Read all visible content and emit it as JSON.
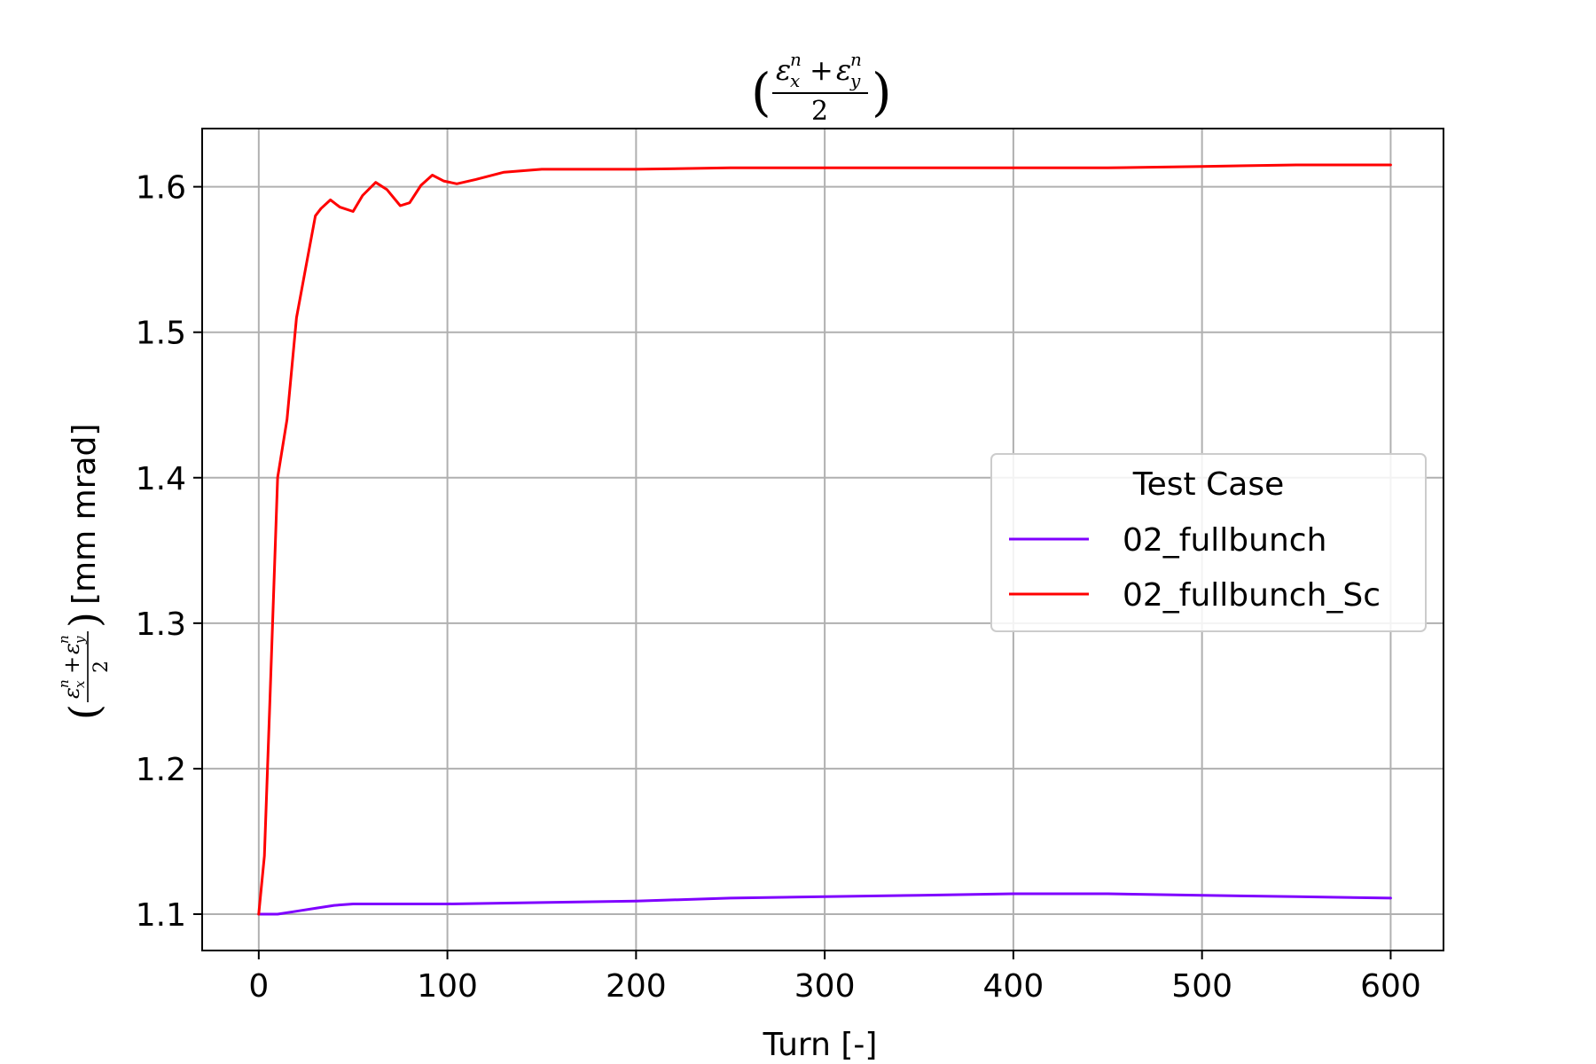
{
  "chart_data": {
    "type": "line",
    "title": "(εxn + εyn) / 2",
    "title_parts": {
      "sym": "ε",
      "sub_x": "x",
      "sub_y": "y",
      "sup": "n",
      "plus": "+",
      "denominator": "2"
    },
    "xlabel": "Turn [-]",
    "ylabel": "[mm mrad]",
    "xlim": [
      -30,
      628
    ],
    "ylim": [
      1.075,
      1.64
    ],
    "xticks": [
      0,
      100,
      200,
      300,
      400,
      500,
      600
    ],
    "xtick_labels": [
      "0",
      "100",
      "200",
      "300",
      "400",
      "500",
      "600"
    ],
    "yticks": [
      1.1,
      1.2,
      1.3,
      1.4,
      1.5,
      1.6
    ],
    "ytick_labels": [
      "1.1",
      "1.2",
      "1.3",
      "1.4",
      "1.5",
      "1.6"
    ],
    "grid": true,
    "legend": {
      "title": "Test Case",
      "position": "center-right"
    },
    "series": [
      {
        "name": "02_fullbunch",
        "color": "#7f00ff",
        "x": [
          0,
          10,
          20,
          30,
          40,
          50,
          60,
          80,
          100,
          150,
          200,
          250,
          300,
          350,
          400,
          450,
          500,
          550,
          600
        ],
        "y": [
          1.1,
          1.1,
          1.102,
          1.104,
          1.106,
          1.107,
          1.107,
          1.107,
          1.107,
          1.108,
          1.109,
          1.111,
          1.112,
          1.113,
          1.114,
          1.114,
          1.113,
          1.112,
          1.111
        ]
      },
      {
        "name": "02_fullbunch_Sc",
        "color": "#ff0000",
        "x": [
          0,
          3,
          6,
          10,
          15,
          20,
          25,
          30,
          33,
          38,
          43,
          50,
          55,
          62,
          68,
          75,
          80,
          86,
          92,
          98,
          105,
          115,
          130,
          150,
          170,
          200,
          250,
          300,
          350,
          400,
          450,
          500,
          550,
          600
        ],
        "y": [
          1.1,
          1.14,
          1.25,
          1.4,
          1.44,
          1.51,
          1.545,
          1.58,
          1.585,
          1.591,
          1.586,
          1.583,
          1.594,
          1.603,
          1.598,
          1.587,
          1.589,
          1.601,
          1.608,
          1.604,
          1.602,
          1.605,
          1.61,
          1.612,
          1.612,
          1.612,
          1.613,
          1.613,
          1.613,
          1.613,
          1.613,
          1.614,
          1.615,
          1.615
        ]
      }
    ]
  }
}
